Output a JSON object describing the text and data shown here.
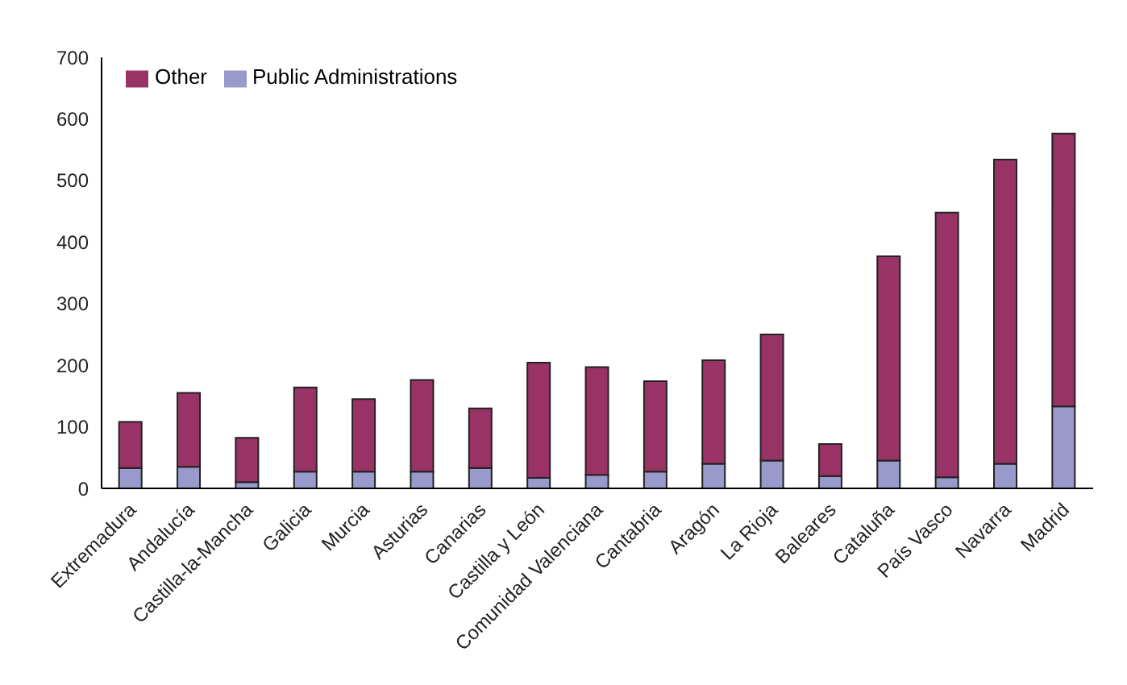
{
  "chart_data": {
    "type": "bar",
    "stacked": true,
    "categories": [
      "Extremadura",
      "Andalucía",
      "Castilla-la-Mancha",
      "Galicia",
      "Murcia",
      "Asturias",
      "Canarias",
      "Castilla y León",
      "Comunidad Valenciana",
      "Cantabria",
      "Aragón",
      "La Rioja",
      "Baleares",
      "Cataluña",
      "País Vasco",
      "Navarra",
      "Madrid"
    ],
    "series": [
      {
        "name": "Public Administrations",
        "color": "#9999cc",
        "values": [
          33,
          35,
          10,
          27,
          27,
          27,
          33,
          17,
          22,
          27,
          40,
          45,
          20,
          45,
          18,
          40,
          133
        ]
      },
      {
        "name": "Other",
        "color": "#993366",
        "values": [
          75,
          120,
          72,
          137,
          118,
          149,
          97,
          187,
          175,
          147,
          168,
          205,
          52,
          332,
          430,
          494,
          443
        ]
      }
    ],
    "ylim": [
      0,
      700
    ],
    "yticks": [
      0,
      100,
      200,
      300,
      400,
      500,
      600,
      700
    ],
    "grid": false,
    "legend": "top left"
  }
}
